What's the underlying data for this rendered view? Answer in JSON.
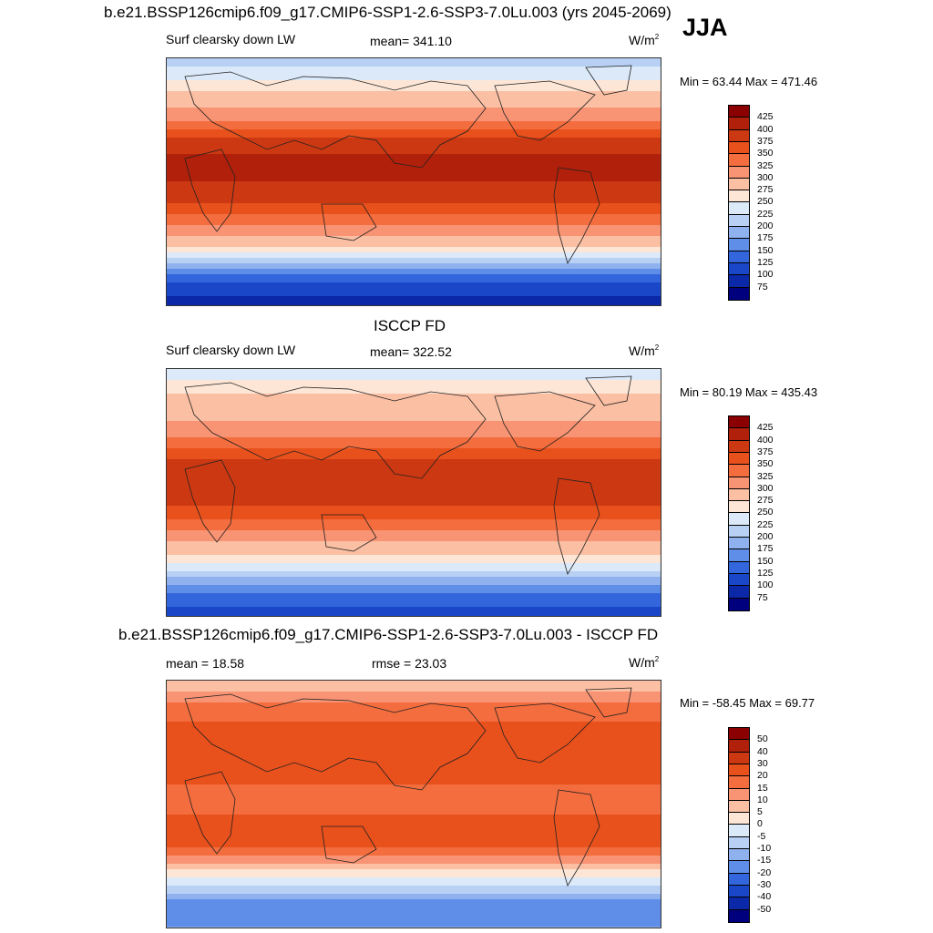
{
  "header": {
    "case_title": "b.e21.BSSP126cmip6.f09_g17.CMIP6-SSP1-2.6-SSP3-7.0Lu.003 (yrs 2045-2069)",
    "season": "JJA"
  },
  "panels": [
    {
      "id": "model",
      "variable": "Surf clearsky down LW",
      "stat_text": "mean= 341.10",
      "units": "W/m",
      "units_sup": "2",
      "minmax": "Min =  63.44 Max = 471.46"
    },
    {
      "id": "obs",
      "title": "ISCCP FD",
      "variable": "Surf clearsky down LW",
      "stat_text": "mean= 322.52",
      "units": "W/m",
      "units_sup": "2",
      "minmax": "Min =  80.19 Max = 435.43"
    },
    {
      "id": "diff",
      "title": "b.e21.BSSP126cmip6.f09_g17.CMIP6-SSP1-2.6-SSP3-7.0Lu.003 - ISCCP FD",
      "variable": "mean =  18.58",
      "stat_text": "rmse =  23.03",
      "units": "W/m",
      "units_sup": "2",
      "minmax": "Min = -58.45 Max =  69.77"
    }
  ],
  "colorbars": {
    "abs_labels": [
      "425",
      "400",
      "375",
      "350",
      "325",
      "300",
      "275",
      "250",
      "225",
      "200",
      "175",
      "150",
      "125",
      "100",
      "75"
    ],
    "abs_colors": [
      "#8b0000",
      "#b0200a",
      "#cc3812",
      "#e8501c",
      "#f46d3e",
      "#f89373",
      "#fbbfa3",
      "#fde6d6",
      "#dbe9f9",
      "#b8d0f4",
      "#8fb2ee",
      "#5f8ee8",
      "#3366dd",
      "#1a46c8",
      "#0a28a8",
      "#00007f"
    ],
    "diff_labels": [
      "50",
      "40",
      "30",
      "20",
      "15",
      "10",
      "5",
      "0",
      "-5",
      "-10",
      "-15",
      "-20",
      "-30",
      "-40",
      "-50"
    ],
    "diff_colors": [
      "#8b0000",
      "#b0200a",
      "#cc3812",
      "#e8501c",
      "#f46d3e",
      "#f89373",
      "#fbbfa3",
      "#fde6d6",
      "#dbe9f9",
      "#b8d0f4",
      "#8fb2ee",
      "#5f8ee8",
      "#3366dd",
      "#1a46c8",
      "#0a28a8",
      "#00007f"
    ]
  },
  "chart_data": [
    {
      "type": "heatmap",
      "title": "Surf clearsky down LW",
      "field": "model",
      "mean": 341.1,
      "min": 63.44,
      "max": 471.46,
      "contour_levels": [
        75,
        100,
        125,
        150,
        175,
        200,
        225,
        250,
        275,
        300,
        325,
        350,
        375,
        400,
        425
      ],
      "lat_profile": [
        [
          90,
          210
        ],
        [
          75,
          250
        ],
        [
          60,
          290
        ],
        [
          45,
          320
        ],
        [
          30,
          380
        ],
        [
          15,
          410
        ],
        [
          0,
          400
        ],
        [
          -15,
          375
        ],
        [
          -30,
          330
        ],
        [
          -45,
          285
        ],
        [
          -60,
          200
        ],
        [
          -75,
          110
        ],
        [
          -90,
          90
        ]
      ]
    },
    {
      "type": "heatmap",
      "title": "ISCCP FD",
      "field": "obs",
      "mean": 322.52,
      "min": 80.19,
      "max": 435.43,
      "contour_levels": [
        75,
        100,
        125,
        150,
        175,
        200,
        225,
        250,
        275,
        300,
        325,
        350,
        375,
        400,
        425
      ],
      "lat_profile": [
        [
          90,
          230
        ],
        [
          75,
          270
        ],
        [
          60,
          290
        ],
        [
          45,
          310
        ],
        [
          30,
          360
        ],
        [
          15,
          395
        ],
        [
          0,
          395
        ],
        [
          -15,
          365
        ],
        [
          -30,
          315
        ],
        [
          -45,
          280
        ],
        [
          -60,
          210
        ],
        [
          -75,
          140
        ],
        [
          -90,
          110
        ]
      ]
    },
    {
      "type": "heatmap",
      "title": "b.e21.BSSP126cmip6.f09_g17.CMIP6-SSP1-2.6-SSP3-7.0Lu.003 - ISCCP FD",
      "field": "difference",
      "mean": 18.58,
      "rmse": 23.03,
      "min": -58.45,
      "max": 69.77,
      "contour_levels": [
        -50,
        -40,
        -30,
        -20,
        -15,
        -10,
        -5,
        0,
        5,
        10,
        15,
        20,
        30,
        40,
        50
      ],
      "lat_profile": [
        [
          90,
          5
        ],
        [
          75,
          15
        ],
        [
          60,
          20
        ],
        [
          45,
          25
        ],
        [
          30,
          22
        ],
        [
          15,
          20
        ],
        [
          0,
          18
        ],
        [
          -15,
          22
        ],
        [
          -30,
          22
        ],
        [
          -45,
          8
        ],
        [
          -60,
          -5
        ],
        [
          -75,
          -20
        ],
        [
          -90,
          -15
        ]
      ]
    }
  ]
}
